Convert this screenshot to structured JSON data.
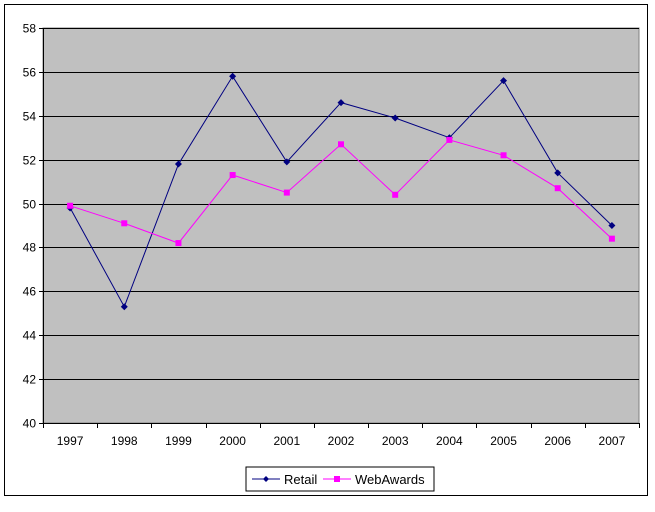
{
  "chart_data": {
    "type": "line",
    "categories": [
      "1997",
      "1998",
      "1999",
      "2000",
      "2001",
      "2002",
      "2003",
      "2004",
      "2005",
      "2006",
      "2007"
    ],
    "ylim": [
      40,
      58
    ],
    "yticks": [
      40,
      42,
      44,
      46,
      48,
      50,
      52,
      54,
      56,
      58
    ],
    "grid": true,
    "plot_background": "#c0c0c0",
    "legend_position": "bottom",
    "series": [
      {
        "name": "Retail",
        "color": "#000080",
        "marker": "diamond",
        "values": [
          49.8,
          45.3,
          51.8,
          55.8,
          51.9,
          54.6,
          53.9,
          53.0,
          55.6,
          51.4,
          49.0
        ]
      },
      {
        "name": "WebAwards",
        "color": "#ff00ff",
        "marker": "square",
        "values": [
          49.9,
          49.1,
          48.2,
          51.3,
          50.5,
          52.7,
          50.4,
          52.9,
          52.2,
          50.7,
          48.4
        ]
      }
    ]
  }
}
